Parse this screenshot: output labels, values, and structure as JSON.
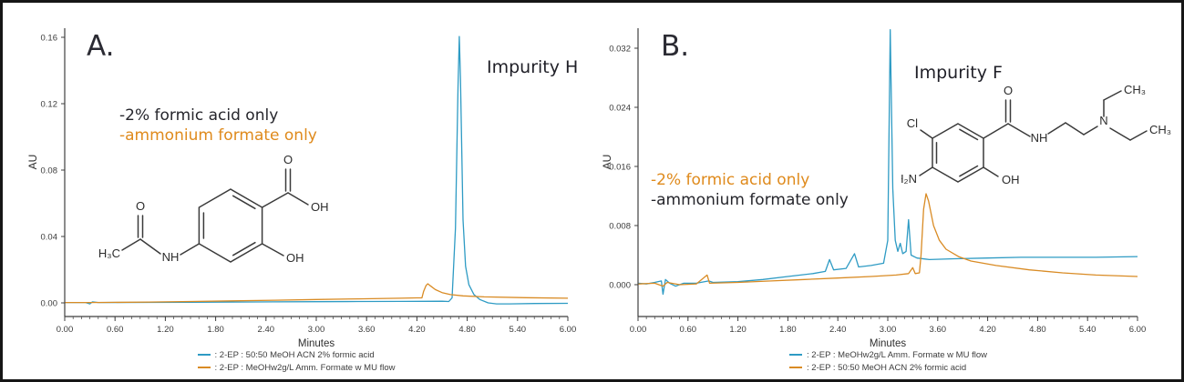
{
  "chart_data": [
    {
      "type": "line",
      "panel_label": "A.",
      "impurity_label": "Impurity H",
      "xlabel": "Minutes",
      "ylabel": "AU",
      "xlim": [
        0,
        6
      ],
      "ylim": [
        -0.00822,
        0.16438
      ],
      "x_minor_step": 0.1,
      "axis_color": "#3f3f3f",
      "legend_position": "bottom",
      "grid": false,
      "xticks": [
        0,
        0.6,
        1.2,
        1.8,
        2.4,
        3.0,
        3.6,
        4.2,
        4.8,
        5.4,
        6.0
      ],
      "xtick_labels": [
        "0.00",
        "0.60",
        "1.20",
        "1.80",
        "2.40",
        "3.00",
        "3.60",
        "4.20",
        "4.80",
        "5.40",
        "6.00"
      ],
      "yticks": [
        0.16,
        0.12,
        0.08,
        0.04,
        0.0
      ],
      "ytick_labels": [
        "0.16",
        "0.12",
        "0.08",
        "0.04",
        "0.00"
      ],
      "conditions": [
        {
          "text": "-2% formic acid only",
          "color": "#26262c"
        },
        {
          "text": "-ammonium formate only",
          "color": "#df8a1c"
        }
      ],
      "legend": [
        {
          "color": "#2e9bc4",
          "label": ": 2-EP : 50:50 MeOH ACN 2% formic acid"
        },
        {
          "color": "#d98b24",
          "label": ": 2-EP : MeOHw2g/L Amm. Formate w MU flow"
        }
      ],
      "series": [
        {
          "name": "2% formic acid",
          "color": "#2e9bc4",
          "points": [
            [
              0,
              0.0002
            ],
            [
              0.25,
              0.0002
            ],
            [
              0.3,
              -0.0006
            ],
            [
              0.33,
              0.0006
            ],
            [
              0.4,
              0.0002
            ],
            [
              1.0,
              0.0003
            ],
            [
              1.5,
              0.0004
            ],
            [
              2.0,
              0.0005
            ],
            [
              2.5,
              0.0006
            ],
            [
              3.0,
              0.0007
            ],
            [
              3.5,
              0.0008
            ],
            [
              4.0,
              0.0009
            ],
            [
              4.5,
              0.001
            ],
            [
              4.58,
              0.0008
            ],
            [
              4.62,
              0.003
            ],
            [
              4.66,
              0.045
            ],
            [
              4.69,
              0.13
            ],
            [
              4.705,
              0.1605
            ],
            [
              4.72,
              0.135
            ],
            [
              4.75,
              0.05
            ],
            [
              4.78,
              0.022
            ],
            [
              4.82,
              0.011
            ],
            [
              4.88,
              0.005
            ],
            [
              4.95,
              0.002
            ],
            [
              5.05,
              0.0
            ],
            [
              5.15,
              -0.0006
            ],
            [
              5.3,
              -0.0006
            ],
            [
              5.6,
              -0.0004
            ],
            [
              6.0,
              -0.0003
            ]
          ]
        },
        {
          "name": "ammonium formate",
          "color": "#d98b24",
          "points": [
            [
              0,
              0.0002
            ],
            [
              0.3,
              0.0002
            ],
            [
              0.5,
              0.0003
            ],
            [
              1.0,
              0.0005
            ],
            [
              1.5,
              0.0008
            ],
            [
              2.0,
              0.0012
            ],
            [
              2.5,
              0.0016
            ],
            [
              3.0,
              0.002
            ],
            [
              3.5,
              0.0024
            ],
            [
              4.0,
              0.0028
            ],
            [
              4.2,
              0.003
            ],
            [
              4.26,
              0.003
            ],
            [
              4.28,
              0.007
            ],
            [
              4.31,
              0.0105
            ],
            [
              4.33,
              0.0115
            ],
            [
              4.36,
              0.0103
            ],
            [
              4.42,
              0.008
            ],
            [
              4.5,
              0.0062
            ],
            [
              4.6,
              0.005
            ],
            [
              4.75,
              0.0042
            ],
            [
              5.0,
              0.0036
            ],
            [
              5.5,
              0.0031
            ],
            [
              6.0,
              0.0028
            ]
          ]
        }
      ],
      "structure_atoms": {
        "carbonyl_o": "O",
        "acid_oh": "OH",
        "phenol_oh": "OH",
        "acetyl_o": "O",
        "amide_nh": "NH",
        "methyl": "H₃C"
      }
    },
    {
      "type": "line",
      "panel_label": "B.",
      "impurity_label": "Impurity F",
      "xlabel": "Minutes",
      "ylabel": "AU",
      "xlim": [
        0,
        6
      ],
      "ylim": [
        -0.00431,
        0.03446
      ],
      "x_minor_step": 0.1,
      "axis_color": "#3f3f3f",
      "legend_position": "bottom",
      "grid": false,
      "xticks": [
        0,
        0.6,
        1.2,
        1.8,
        2.4,
        3.0,
        3.6,
        4.2,
        4.8,
        5.4,
        6.0
      ],
      "xtick_labels": [
        "0.00",
        "0.60",
        "1.20",
        "1.80",
        "2.40",
        "3.00",
        "3.60",
        "4.20",
        "4.80",
        "5.40",
        "6.00"
      ],
      "yticks": [
        0.032,
        0.024,
        0.016,
        0.008,
        0.0
      ],
      "ytick_labels": [
        "0.032",
        "0.024",
        "0.016",
        "0.008",
        "0.000"
      ],
      "conditions": [
        {
          "text": "-2% formic acid only",
          "color": "#df8a1c"
        },
        {
          "text": "-ammonium formate only",
          "color": "#26262c"
        }
      ],
      "legend": [
        {
          "color": "#2e9bc4",
          "label": ": 2-EP : MeOHw2g/L Amm. Formate w MU flow"
        },
        {
          "color": "#d98b24",
          "label": ": 2-EP : 50:50 MeOH ACN 2% formic acid"
        }
      ],
      "series": [
        {
          "name": "ammonium formate",
          "color": "#2e9bc4",
          "points": [
            [
              0,
              0.0002
            ],
            [
              0.1,
              0.0001
            ],
            [
              0.2,
              0.0003
            ],
            [
              0.28,
              0.0005
            ],
            [
              0.3,
              -0.0013
            ],
            [
              0.33,
              0.0007
            ],
            [
              0.38,
              0.0002
            ],
            [
              0.45,
              -0.0002
            ],
            [
              0.55,
              0.0002
            ],
            [
              0.7,
              0.0002
            ],
            [
              0.85,
              0.0005
            ],
            [
              0.9,
              0.0003
            ],
            [
              1.2,
              0.0004
            ],
            [
              1.5,
              0.0007
            ],
            [
              1.8,
              0.0011
            ],
            [
              2.1,
              0.0015
            ],
            [
              2.25,
              0.0018
            ],
            [
              2.3,
              0.0034
            ],
            [
              2.35,
              0.002
            ],
            [
              2.5,
              0.0022
            ],
            [
              2.6,
              0.0042
            ],
            [
              2.65,
              0.0024
            ],
            [
              2.8,
              0.0026
            ],
            [
              2.95,
              0.0029
            ],
            [
              3.0,
              0.006
            ],
            [
              3.03,
              0.0345
            ],
            [
              3.06,
              0.013
            ],
            [
              3.09,
              0.006
            ],
            [
              3.12,
              0.0045
            ],
            [
              3.15,
              0.0056
            ],
            [
              3.18,
              0.0042
            ],
            [
              3.22,
              0.0045
            ],
            [
              3.25,
              0.0088
            ],
            [
              3.28,
              0.004
            ],
            [
              3.35,
              0.0036
            ],
            [
              3.5,
              0.0034
            ],
            [
              3.8,
              0.0035
            ],
            [
              4.2,
              0.0036
            ],
            [
              4.6,
              0.0037
            ],
            [
              5.0,
              0.0037
            ],
            [
              5.5,
              0.0037
            ],
            [
              6.0,
              0.0038
            ]
          ]
        },
        {
          "name": "2% formic acid",
          "color": "#d98b24",
          "points": [
            [
              0,
              0.0001
            ],
            [
              0.2,
              0.0002
            ],
            [
              0.3,
              -0.0002
            ],
            [
              0.35,
              0.0003
            ],
            [
              0.5,
              0.0
            ],
            [
              0.7,
              0.0001
            ],
            [
              0.83,
              0.0013
            ],
            [
              0.86,
              0.0002
            ],
            [
              1.2,
              0.0003
            ],
            [
              1.6,
              0.0005
            ],
            [
              2.0,
              0.0007
            ],
            [
              2.4,
              0.0009
            ],
            [
              2.8,
              0.0011
            ],
            [
              3.1,
              0.0013
            ],
            [
              3.25,
              0.0015
            ],
            [
              3.3,
              0.0023
            ],
            [
              3.33,
              0.0015
            ],
            [
              3.38,
              0.0016
            ],
            [
              3.4,
              0.004
            ],
            [
              3.43,
              0.0102
            ],
            [
              3.46,
              0.0123
            ],
            [
              3.49,
              0.0113
            ],
            [
              3.55,
              0.008
            ],
            [
              3.62,
              0.006
            ],
            [
              3.7,
              0.0048
            ],
            [
              3.85,
              0.0038
            ],
            [
              4.0,
              0.0032
            ],
            [
              4.3,
              0.0026
            ],
            [
              4.7,
              0.002
            ],
            [
              5.1,
              0.0016
            ],
            [
              5.5,
              0.0013
            ],
            [
              6.0,
              0.0011
            ]
          ]
        }
      ],
      "structure_atoms": {
        "chloro": "Cl",
        "carbonyl_o": "O",
        "amide_nh": "NH",
        "amine_n": "N",
        "ethyl_ch3_top": "CH₃",
        "ethyl_ch3_right": "CH₃",
        "aryl_amine": "H₂N",
        "phenol_oh": "OH"
      }
    }
  ]
}
